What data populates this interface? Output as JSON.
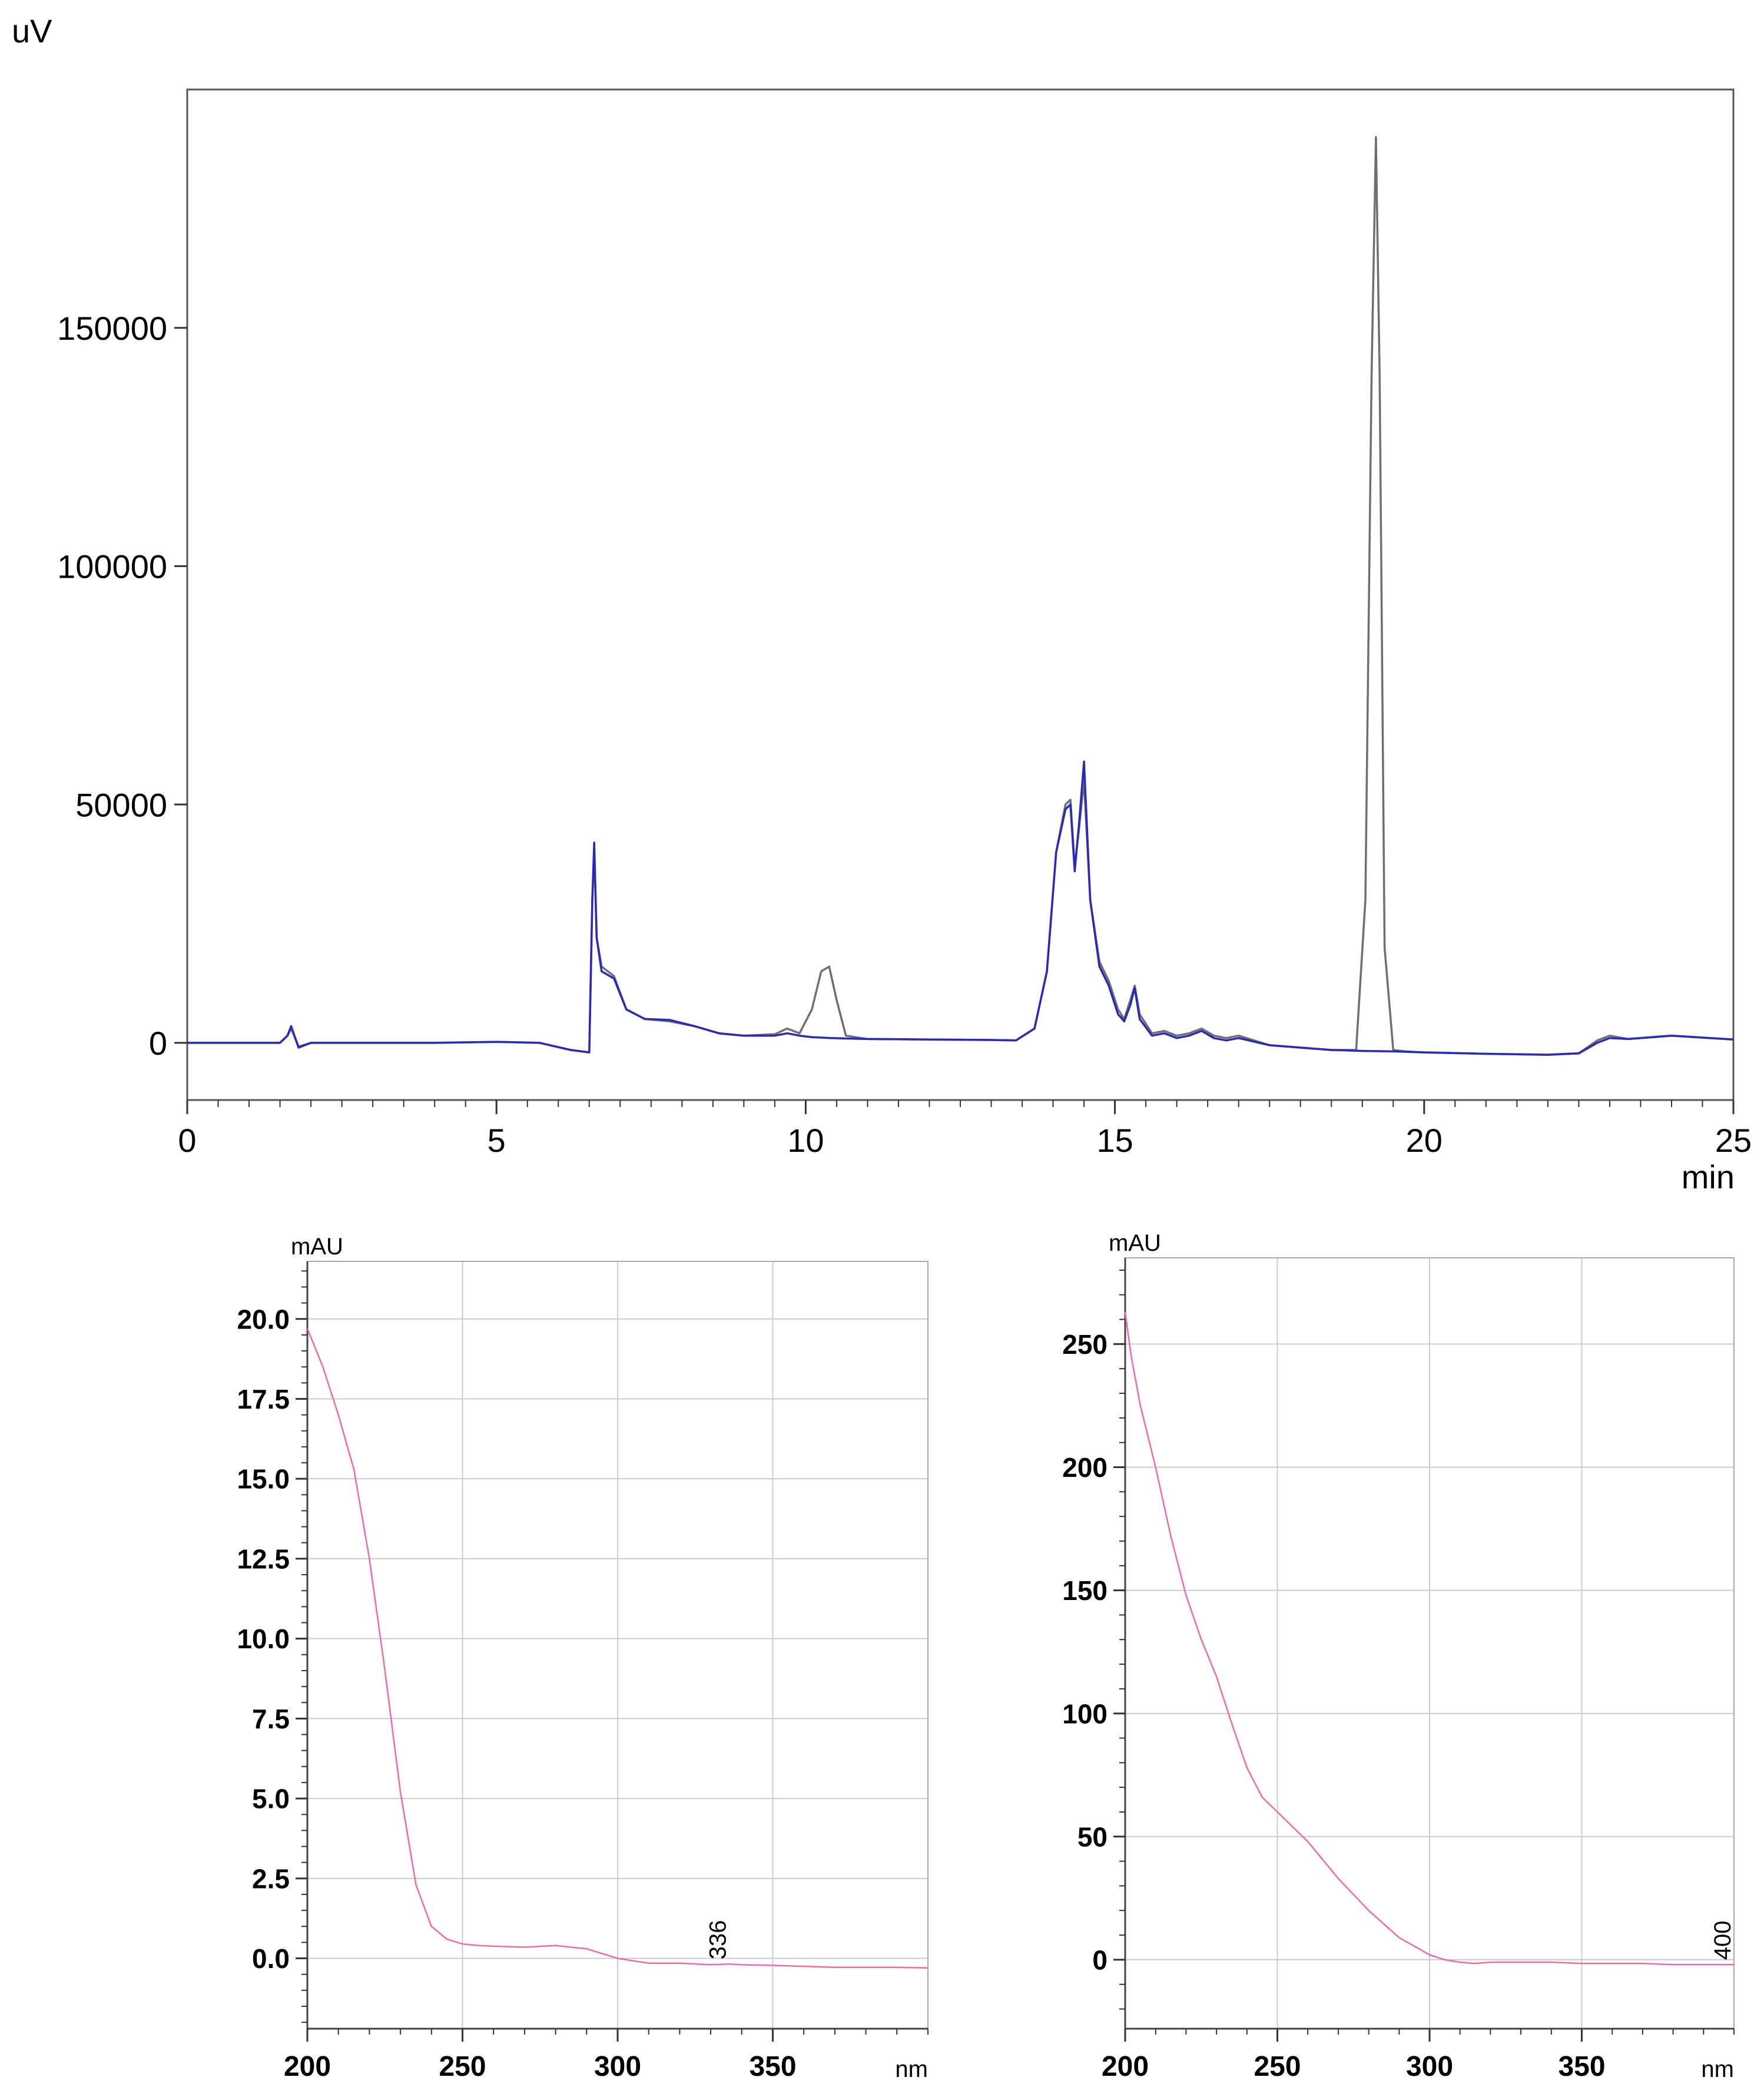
{
  "chart_data": [
    {
      "type": "line",
      "title": "",
      "xlabel": "min",
      "ylabel": "uV",
      "xlim": [
        0,
        25
      ],
      "ylim": [
        -12000,
        200000
      ],
      "x_ticks": [
        0,
        5,
        10,
        15,
        20,
        25
      ],
      "x_tick_labels": [
        "0",
        "5",
        "10",
        "15",
        "20",
        "25"
      ],
      "y_ticks": [
        0,
        50000,
        100000,
        150000
      ],
      "y_tick_labels": [
        "0",
        "50000",
        "100000",
        "150000"
      ],
      "grid": false,
      "colors": {
        "gray": "#6f6f6f",
        "blue": "#2a2ab8"
      },
      "series": [
        {
          "color": "#6f6f6f",
          "x": [
            0,
            1.5,
            1.62,
            1.68,
            1.74,
            1.8,
            2.0,
            3,
            4,
            5,
            5.7,
            6.2,
            6.5,
            6.55,
            6.58,
            6.62,
            6.7,
            6.9,
            7.1,
            7.4,
            7.8,
            8.2,
            8.6,
            9.0,
            9.5,
            9.7,
            9.9,
            10.1,
            10.25,
            10.38,
            10.5,
            10.65,
            11.0,
            12,
            13,
            13.4,
            13.7,
            13.9,
            14.05,
            14.2,
            14.28,
            14.35,
            14.42,
            14.5,
            14.6,
            14.75,
            14.9,
            15.05,
            15.15,
            15.25,
            15.32,
            15.4,
            15.6,
            15.8,
            16.0,
            16.2,
            16.4,
            16.6,
            16.8,
            17.0,
            17.5,
            18.0,
            18.5,
            18.9,
            19.05,
            19.15,
            19.22,
            19.28,
            19.36,
            19.5,
            19.7,
            20,
            21,
            22,
            22.5,
            22.8,
            23.0,
            23.3,
            24,
            25
          ],
          "y": [
            0,
            0,
            1500,
            3000,
            1200,
            -800,
            0,
            0,
            0,
            200,
            0,
            -1500,
            -2000,
            30000,
            41000,
            22000,
            16000,
            14000,
            7000,
            5000,
            4500,
            3500,
            2000,
            1500,
            1800,
            3000,
            2000,
            7000,
            15000,
            16000,
            9000,
            1500,
            800,
            700,
            600,
            500,
            3000,
            15000,
            40000,
            50000,
            51000,
            37000,
            45000,
            55000,
            30000,
            17000,
            13000,
            7000,
            5000,
            9000,
            12000,
            6000,
            2000,
            2500,
            1500,
            2000,
            3000,
            1500,
            1000,
            1500,
            -500,
            -1000,
            -1500,
            -1500,
            30000,
            140000,
            190000,
            140000,
            20000,
            -1500,
            -1800,
            -2000,
            -2300,
            -2500,
            -2200,
            500,
            1500,
            800,
            1500,
            700
          ],
          "note": ""
        },
        {
          "color": "#2a2ab8",
          "x": [
            0,
            1.5,
            1.62,
            1.68,
            1.74,
            1.8,
            2.0,
            3,
            4,
            5,
            5.7,
            6.2,
            6.5,
            6.55,
            6.58,
            6.62,
            6.7,
            6.9,
            7.1,
            7.4,
            7.8,
            8.2,
            8.6,
            9.0,
            9.5,
            9.7,
            9.9,
            10.1,
            10.4,
            10.7,
            11.0,
            12,
            13,
            13.4,
            13.7,
            13.9,
            14.05,
            14.2,
            14.28,
            14.35,
            14.42,
            14.5,
            14.6,
            14.75,
            14.9,
            15.05,
            15.15,
            15.25,
            15.32,
            15.4,
            15.6,
            15.8,
            16.0,
            16.2,
            16.4,
            16.6,
            16.8,
            17.0,
            17.5,
            18.0,
            18.5,
            19.0,
            19.5,
            20,
            21,
            22,
            22.5,
            22.8,
            23.0,
            23.3,
            24,
            25
          ],
          "y": [
            0,
            0,
            1500,
            3500,
            1200,
            -1000,
            0,
            0,
            0,
            200,
            0,
            -1500,
            -2000,
            30000,
            42000,
            22000,
            15000,
            13500,
            7000,
            5000,
            4800,
            3500,
            2000,
            1500,
            1500,
            2000,
            1500,
            1200,
            1000,
            900,
            800,
            700,
            600,
            500,
            3000,
            15000,
            40000,
            49000,
            50000,
            36000,
            46000,
            59000,
            30000,
            16000,
            12000,
            6000,
            4500,
            8000,
            11500,
            5000,
            1500,
            2000,
            1000,
            1500,
            2500,
            1000,
            500,
            1000,
            -500,
            -1000,
            -1500,
            -1700,
            -1800,
            -2000,
            -2300,
            -2500,
            -2200,
            0,
            1000,
            800,
            1500,
            700
          ],
          "note": ""
        }
      ]
    },
    {
      "type": "line",
      "title": "",
      "xlabel": "nm",
      "ylabel": "mAU",
      "xlim": [
        200,
        400
      ],
      "ylim": [
        -2.2,
        21.8
      ],
      "x_ticks": [
        200,
        250,
        300,
        350
      ],
      "x_tick_labels": [
        "200",
        "250",
        "300",
        "350"
      ],
      "y_ticks": [
        0,
        2.5,
        5,
        7.5,
        10,
        12.5,
        15,
        17.5,
        20
      ],
      "y_tick_labels": [
        "0.0",
        "2.5",
        "5.0",
        "7.5",
        "10.0",
        "12.5",
        "15.0",
        "17.5",
        "20.0"
      ],
      "grid": true,
      "colors": {
        "line": "#f06aa8",
        "grid": "#cccccc"
      },
      "annotation": "336",
      "annotation_x": 336,
      "series": [
        {
          "x": [
            200,
            205,
            210,
            215,
            220,
            225,
            230,
            235,
            240,
            245,
            250,
            255,
            260,
            270,
            280,
            285,
            290,
            300,
            310,
            320,
            330,
            336,
            340,
            350,
            360,
            370,
            380,
            390,
            400
          ],
          "y": [
            19.7,
            18.5,
            17.0,
            15.3,
            12.5,
            9.0,
            5.2,
            2.3,
            1.0,
            0.6,
            0.45,
            0.4,
            0.38,
            0.35,
            0.4,
            0.35,
            0.3,
            0.0,
            -0.15,
            -0.15,
            -0.2,
            -0.18,
            -0.2,
            -0.22,
            -0.25,
            -0.28,
            -0.28,
            -0.28,
            -0.3
          ]
        }
      ]
    },
    {
      "type": "line",
      "title": "",
      "xlabel": "nm",
      "ylabel": "mAU",
      "xlim": [
        200,
        400
      ],
      "ylim": [
        -28,
        285
      ],
      "x_ticks": [
        200,
        250,
        300,
        350
      ],
      "x_tick_labels": [
        "200",
        "250",
        "300",
        "350"
      ],
      "y_ticks": [
        0,
        50,
        100,
        150,
        200,
        250
      ],
      "y_tick_labels": [
        "0",
        "50",
        "100",
        "150",
        "200",
        "250"
      ],
      "grid": true,
      "colors": {
        "line": "#f06aa8",
        "grid": "#cccccc"
      },
      "annotation": "400",
      "annotation_x": 400,
      "series": [
        {
          "x": [
            200,
            202,
            205,
            210,
            215,
            220,
            225,
            230,
            235,
            240,
            245,
            250,
            260,
            270,
            280,
            290,
            300,
            305,
            310,
            315,
            320,
            330,
            340,
            350,
            360,
            370,
            380,
            390,
            400
          ],
          "y": [
            263,
            245,
            225,
            200,
            172,
            148,
            130,
            115,
            96,
            78,
            66,
            60,
            48,
            33,
            20,
            9,
            2,
            0,
            -1,
            -1.5,
            -1,
            -1,
            -1,
            -1.5,
            -1.5,
            -1.5,
            -2,
            -2,
            -2
          ]
        }
      ]
    }
  ]
}
